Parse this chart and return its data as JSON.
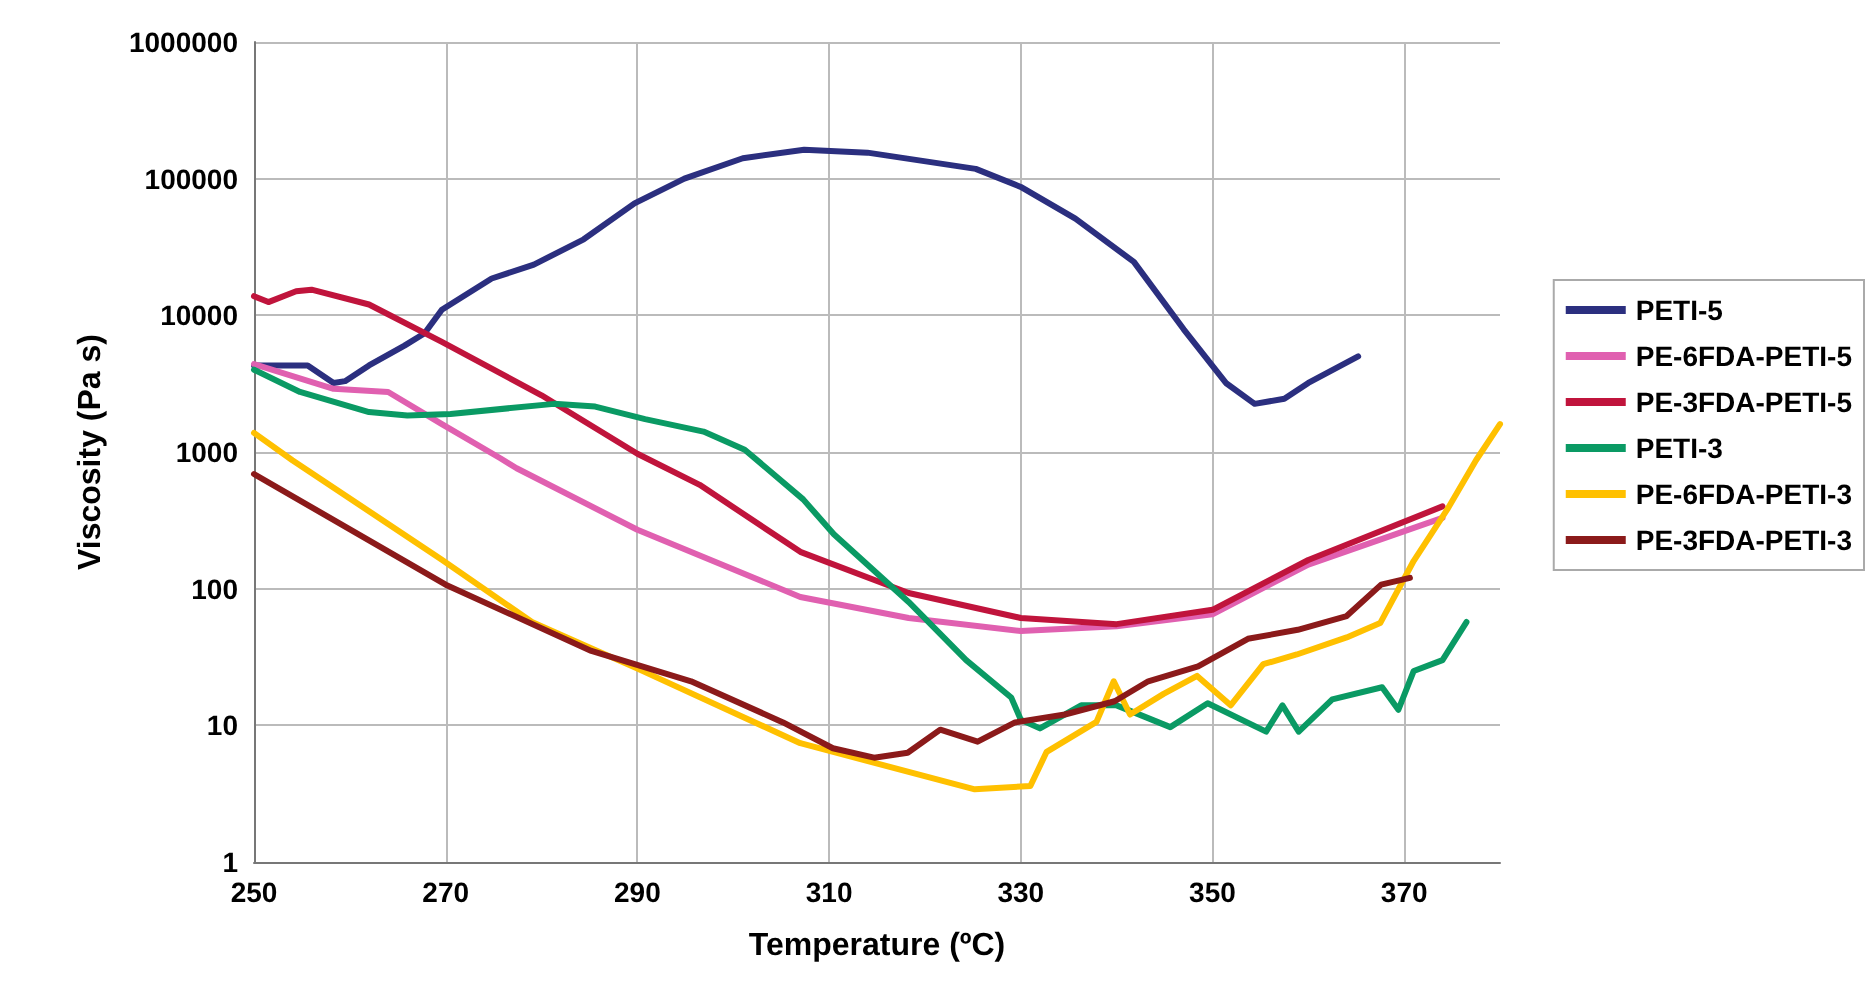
{
  "chart_data": {
    "type": "line",
    "xlabel": "Temperature (ºC)",
    "ylabel": "Viscosity (Pa s)",
    "xlim": [
      250,
      380
    ],
    "xticks": [
      250,
      270,
      290,
      310,
      330,
      350,
      370
    ],
    "ylim": [
      1,
      1000000
    ],
    "yticks": [
      1,
      10,
      100,
      1000,
      10000,
      100000,
      1000000
    ],
    "log": "y",
    "grid": true,
    "legend": "right",
    "marker": "none",
    "line_style": "solid",
    "series": [
      {
        "name": "PETI-5",
        "color": "#2b2f7f",
        "x": [
          250,
          255.6,
          258.3,
          259.5,
          262,
          265.7,
          267.8,
          269.6,
          274.8,
          279.2,
          284.4,
          289.7,
          294.9,
          301,
          307.4,
          314,
          325.3,
          330,
          335.7,
          341.8,
          347,
          351.4,
          354.4,
          357.5,
          360,
          365.2
        ],
        "values": [
          4300,
          4300,
          3200,
          3300,
          4300,
          6000,
          7400,
          11000,
          18600,
          23500,
          36000,
          66000,
          100000,
          141000,
          163000,
          155000,
          118000,
          87000,
          51000,
          24600,
          7900,
          3200,
          2250,
          2450,
          3200,
          5000
        ]
      },
      {
        "name": "PE-6FDA-PETI-5",
        "color": "#e060b0",
        "x": [
          250,
          258.3,
          264,
          269.6,
          275.7,
          277.4,
          290,
          307,
          318.3,
          330,
          340,
          350,
          360,
          374
        ],
        "values": [
          4400,
          2900,
          2750,
          1600,
          900,
          760,
          270,
          87,
          61,
          49,
          53,
          65,
          150,
          330
        ]
      },
      {
        "name": "PE-3FDA-PETI-5",
        "color": "#c0143c",
        "x": [
          250,
          251.5,
          254.4,
          256,
          262,
          269.6,
          280,
          290,
          296.5,
          307,
          318.3,
          330,
          340,
          350,
          360,
          374
        ],
        "values": [
          13800,
          12500,
          15000,
          15400,
          12000,
          6400,
          2600,
          970,
          575,
          186,
          93,
          61,
          55,
          70,
          162,
          400
        ]
      },
      {
        "name": "PETI-3",
        "color": "#0a9a64",
        "x": [
          250,
          254.8,
          262,
          266,
          270.5,
          281.3,
          285.6,
          290.8,
          296.9,
          301.2,
          307.3,
          310.5,
          318.3,
          324.3,
          329,
          330,
          332,
          336.3,
          340,
          345.6,
          349.5,
          355.6,
          357.3,
          359,
          362.5,
          367.7,
          369.4,
          371,
          374,
          376.5
        ],
        "values": [
          4000,
          2750,
          1960,
          1850,
          1900,
          2250,
          2150,
          1740,
          1410,
          1040,
          450,
          250,
          80,
          30,
          16,
          11,
          9.5,
          14,
          14,
          9.7,
          14.5,
          9,
          14,
          9,
          15.5,
          19,
          13,
          25,
          30,
          57
        ]
      },
      {
        "name": "PE-6FDA-PETI-3",
        "color": "#ffc000",
        "x": [
          250,
          254,
          269.6,
          279,
          290,
          307,
          325.2,
          331,
          332.7,
          337.9,
          339.7,
          341.4,
          344.9,
          348.4,
          351.9,
          355.3,
          358.8,
          364,
          367.5,
          371,
          374.5,
          377.5,
          380
        ],
        "values": [
          1380,
          870,
          163,
          57,
          26,
          7.4,
          3.4,
          3.6,
          6.4,
          10.6,
          21,
          12,
          17,
          23,
          14,
          28,
          33,
          44,
          56,
          160,
          380,
          870,
          1600
        ]
      },
      {
        "name": "PE-3FDA-PETI-3",
        "color": "#8b1a1a",
        "x": [
          250,
          270,
          285.2,
          295.6,
          305.2,
          310.4,
          314.7,
          318.2,
          321.6,
          325.5,
          329.4,
          334.6,
          339.8,
          343.3,
          348.5,
          353.7,
          358.9,
          364,
          367.6,
          370.6
        ],
        "values": [
          690,
          107,
          35,
          21,
          10.5,
          6.8,
          5.8,
          6.3,
          9.3,
          7.6,
          10.5,
          12,
          15,
          21,
          27,
          43,
          50,
          63,
          107,
          120
        ]
      }
    ]
  }
}
